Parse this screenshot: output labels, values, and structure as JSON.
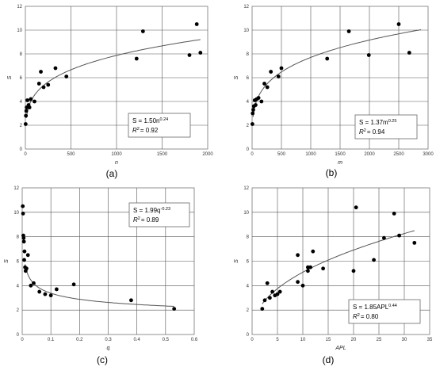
{
  "chart_data": [
    {
      "type": "scatter",
      "panel_label": "(a)",
      "xlabel": "n",
      "ylabel": "S",
      "xlim": [
        0,
        2000
      ],
      "ylim": [
        0,
        12
      ],
      "xticks": [
        "0",
        "500",
        "1000",
        "1500",
        "2000"
      ],
      "yticks": [
        "0",
        "2",
        "4",
        "6",
        "8",
        "10",
        "12"
      ],
      "equation": "S = 1.50n",
      "equation_exp": "0.24",
      "r2_text": "R",
      "r2_value": "= 0.92",
      "fit": {
        "a": 1.5,
        "b": 0.24
      },
      "x": [
        3,
        6,
        10,
        14,
        22,
        35,
        45,
        60,
        100,
        150,
        170,
        200,
        250,
        330,
        450,
        1220,
        1290,
        1800,
        1880,
        1920
      ],
      "y": [
        2.1,
        2.8,
        3.2,
        3.5,
        4.1,
        3.7,
        3.5,
        4.2,
        4.0,
        5.5,
        6.5,
        5.2,
        5.4,
        6.8,
        6.1,
        7.6,
        9.9,
        7.9,
        10.5,
        8.1
      ]
    },
    {
      "type": "scatter",
      "panel_label": "(b)",
      "xlabel": "m",
      "ylabel": "S",
      "xlim": [
        0,
        3000
      ],
      "ylim": [
        0,
        12
      ],
      "xticks": [
        "0",
        "500",
        "1000",
        "1500",
        "2000",
        "2500",
        "3000"
      ],
      "yticks": [
        "0",
        "2",
        "4",
        "6",
        "8",
        "10",
        "12"
      ],
      "equation": "S = 1.37m",
      "equation_exp": "0.25",
      "r2_text": "R",
      "r2_value": "= 0.94",
      "fit": {
        "a": 1.37,
        "b": 0.25
      },
      "x": [
        5,
        10,
        20,
        30,
        45,
        60,
        80,
        110,
        160,
        210,
        260,
        320,
        450,
        500,
        1280,
        1650,
        1990,
        2500,
        2680
      ],
      "y": [
        2.1,
        3.0,
        3.3,
        3.6,
        4.1,
        3.7,
        4.2,
        4.3,
        4.0,
        5.5,
        5.2,
        6.5,
        6.1,
        6.8,
        7.6,
        9.9,
        7.9,
        10.5,
        8.1
      ]
    },
    {
      "type": "scatter",
      "panel_label": "(c)",
      "xlabel": "q",
      "ylabel": "S",
      "xlim": [
        0,
        0.6
      ],
      "ylim": [
        0,
        12
      ],
      "xticks": [
        "0",
        "0.1",
        "0.2",
        "0.3",
        "0.4",
        "0.5",
        "0.6"
      ],
      "yticks": [
        "0",
        "2",
        "4",
        "6",
        "8",
        "10",
        "12"
      ],
      "equation": "S = 1.99q",
      "equation_exp": "-0.23",
      "r2_text": "R",
      "r2_value": "= 0.89",
      "fit": {
        "a": 1.99,
        "b": -0.23
      },
      "x": [
        0.002,
        0.003,
        0.004,
        0.005,
        0.006,
        0.007,
        0.008,
        0.01,
        0.012,
        0.015,
        0.02,
        0.03,
        0.04,
        0.06,
        0.08,
        0.1,
        0.12,
        0.18,
        0.38,
        0.53
      ],
      "y": [
        10.5,
        9.9,
        8.1,
        7.9,
        7.6,
        6.1,
        6.8,
        5.5,
        5.2,
        5.4,
        6.5,
        4.0,
        4.2,
        3.5,
        3.3,
        3.2,
        3.7,
        4.1,
        2.8,
        2.1
      ]
    },
    {
      "type": "scatter",
      "panel_label": "(d)",
      "xlabel": "APL",
      "ylabel": "S",
      "xlim": [
        0,
        35
      ],
      "ylim": [
        0,
        12
      ],
      "xticks": [
        "0",
        "5",
        "10",
        "15",
        "20",
        "25",
        "30",
        "35"
      ],
      "yticks": [
        "0",
        "2",
        "4",
        "6",
        "8",
        "10",
        "12"
      ],
      "equation": "S = 1.85APL",
      "equation_exp": "0.44",
      "r2_text": "R",
      "r2_value": "= 0.80",
      "fit": {
        "a": 1.85,
        "b": 0.44
      },
      "x": [
        2,
        2.5,
        3,
        3.5,
        4,
        4.5,
        5,
        5.5,
        9,
        9,
        10,
        11,
        11,
        11.5,
        12,
        14,
        20,
        20.5,
        24,
        26,
        28,
        29,
        32
      ],
      "y": [
        2.1,
        2.8,
        4.2,
        3.0,
        3.5,
        3.2,
        3.3,
        3.5,
        6.5,
        4.3,
        4.0,
        5.2,
        5.5,
        5.5,
        6.8,
        5.4,
        5.2,
        10.4,
        6.1,
        7.9,
        9.9,
        8.1,
        7.5
      ]
    }
  ]
}
